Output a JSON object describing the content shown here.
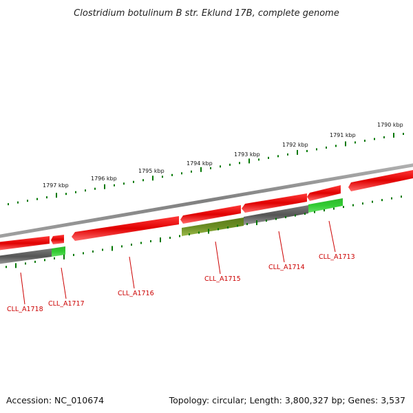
{
  "title": "Clostridium botulinum B str. Eklund 17B, complete genome",
  "footer": {
    "accession": "Accession: NC_010674",
    "summary": "Topology: circular; Length: 3,800,327 bp; Genes: 3,537"
  },
  "colors": {
    "backbone": "#808080",
    "forward_gene": "#ff0000",
    "reverse_gene_gray": "#666666",
    "reverse_gene_green": "#33cc33",
    "reverse_gene_olive": "#6b8e23",
    "tick": "#007700",
    "label": "#cc0000"
  },
  "ruler": [
    {
      "label": "1797 kbp"
    },
    {
      "label": "1796 kbp"
    },
    {
      "label": "1795 kbp"
    },
    {
      "label": "1794 kbp"
    },
    {
      "label": "1793 kbp"
    },
    {
      "label": "1792 kbp"
    },
    {
      "label": "1791 kbp"
    },
    {
      "label": "1790 kbp"
    }
  ],
  "gene_labels": [
    {
      "label": "CLL_A1718"
    },
    {
      "label": "CLL_A1717"
    },
    {
      "label": "CLL_A1716"
    },
    {
      "label": "CLL_A1715"
    },
    {
      "label": "CLL_A1714"
    },
    {
      "label": "CLL_A1713"
    }
  ]
}
